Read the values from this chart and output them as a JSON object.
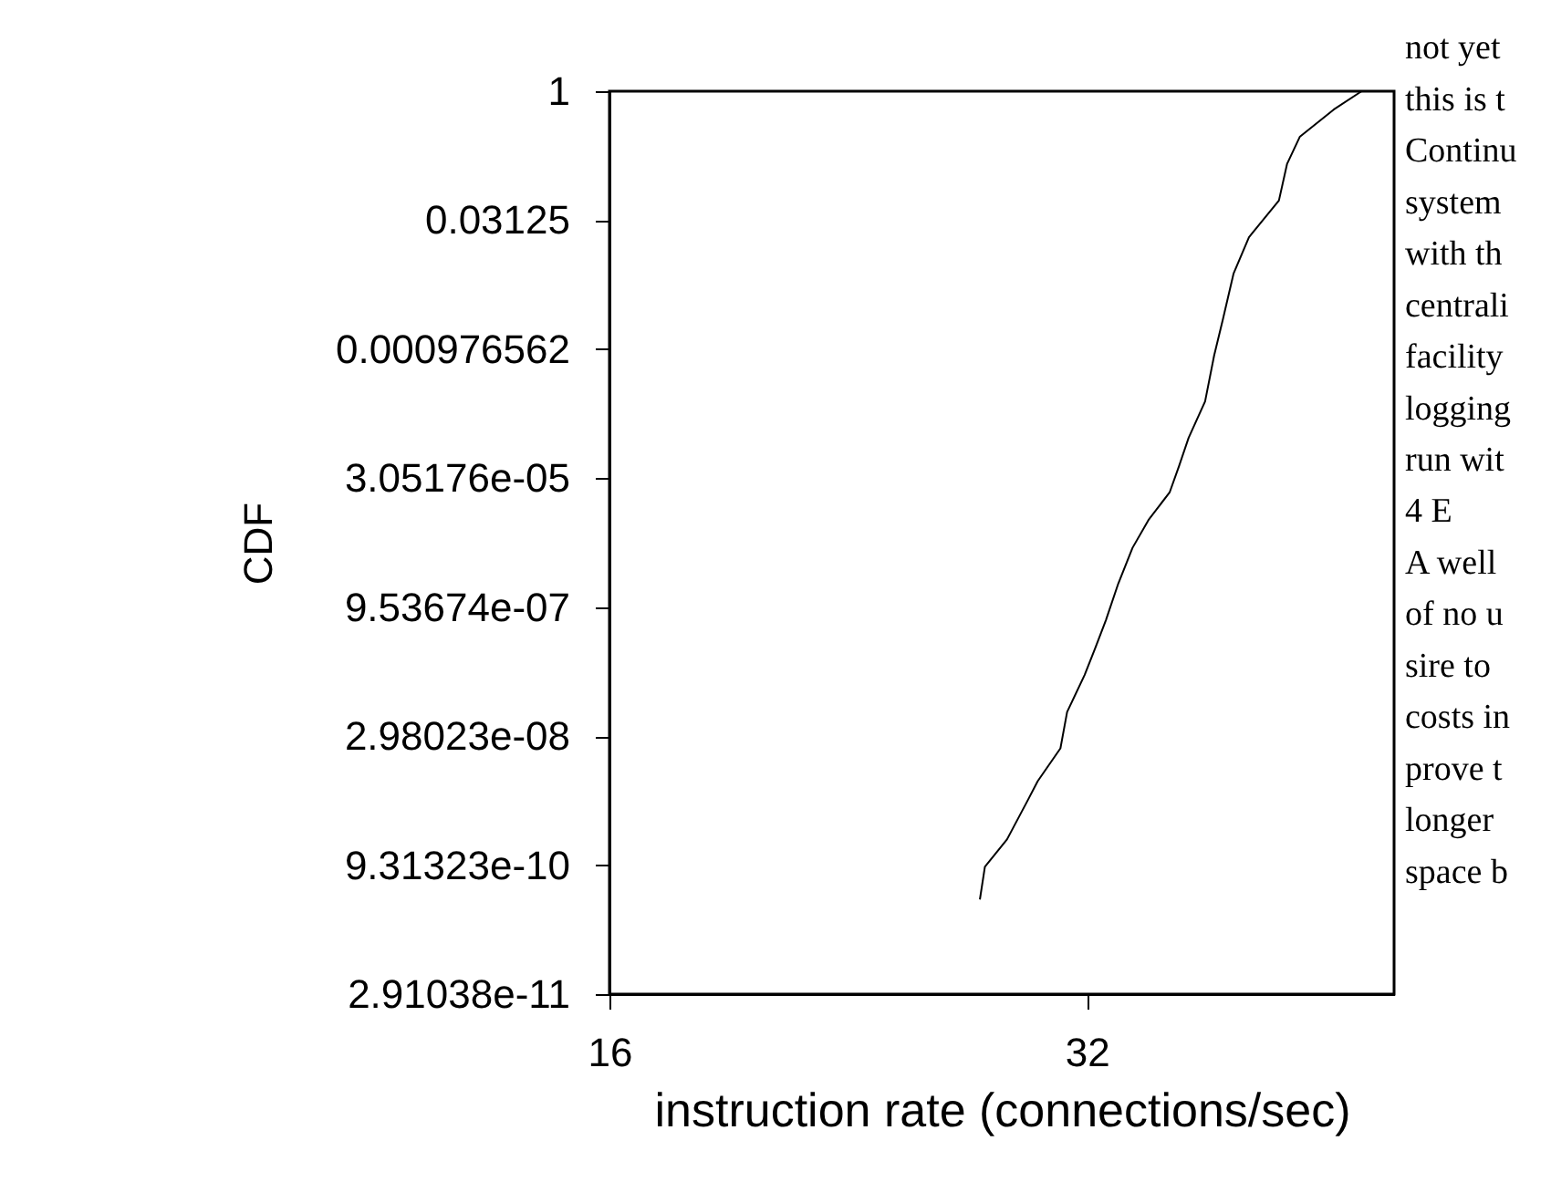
{
  "chart_data": {
    "type": "line",
    "xlabel": "instruction rate (connections/sec)",
    "ylabel": "CDF",
    "log": "xy",
    "xlim": [
      16,
      50
    ],
    "xticks": [
      16,
      32
    ],
    "ylim": [
      2.9103830456733704e-11,
      1
    ],
    "yticks": [
      1,
      0.03125,
      {
        "value": 0.0009765625,
        "label": "0.000976562"
      },
      {
        "value": 3.0517578125e-05,
        "label": "3.05176e-05"
      },
      {
        "value": 9.5367431640625e-07,
        "label": "9.53674e-07"
      },
      {
        "value": 2.9802322387695312e-08,
        "label": "2.98023e-08"
      },
      {
        "value": 9.313225746154785e-10,
        "label": "9.31323e-10"
      },
      {
        "value": 2.9103830456733704e-11,
        "label": "2.91038e-11"
      }
    ],
    "grid": false,
    "marker": "none",
    "line_style": "solid",
    "series": [
      {
        "color": "#000000",
        "x": [
          27.4,
          27.6,
          28.5,
          29.4,
          29.8,
          30.8,
          31.1,
          31.9,
          32.4,
          32.9,
          33.5,
          34.2,
          35.0,
          36.1,
          36.6,
          37.1,
          38.0,
          38.5,
          39.0,
          39.6,
          40.5,
          42.3,
          42.8,
          43.6,
          45.8,
          47.7
        ],
        "values": [
          3.7e-10,
          8.9e-10,
          1.86e-09,
          5.5e-09,
          8.9e-09,
          2.15e-08,
          5.7e-08,
          1.54e-07,
          3.2e-07,
          6.7e-07,
          1.8e-06,
          4.7e-06,
          9.9e-06,
          2.1e-05,
          4.3e-05,
          9e-05,
          0.00024,
          0.00082,
          0.0022,
          0.0074,
          0.0198,
          0.053,
          0.141,
          0.293,
          0.61,
          1
        ]
      }
    ],
    "annotations": [
      "not yet",
      "this is t",
      "Continu",
      "system",
      "with th",
      "centrali",
      "facility",
      "logging",
      "run wit",
      "4   E",
      "A well",
      "of no u",
      "sire to",
      "costs in",
      "prove t",
      "longer",
      "space b"
    ]
  }
}
